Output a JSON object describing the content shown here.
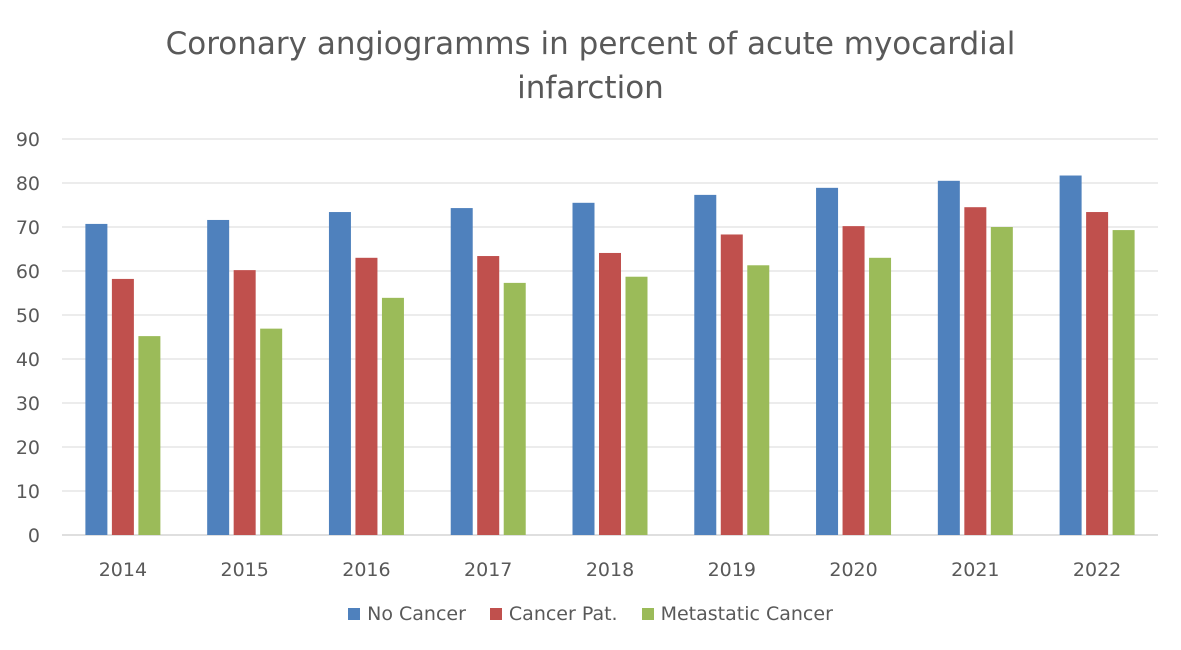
{
  "chart_data": {
    "type": "bar",
    "title_lines": [
      "Coronary angiogramms in percent of  acute myocardial",
      "infarction"
    ],
    "categories": [
      "2014",
      "2015",
      "2016",
      "2017",
      "2018",
      "2019",
      "2020",
      "2021",
      "2022"
    ],
    "ylim": [
      0,
      90
    ],
    "yticks": [
      "0",
      "10",
      "20",
      "30",
      "40",
      "50",
      "60",
      "70",
      "80",
      "90"
    ],
    "grid": true,
    "legend_position": "bottom",
    "series": [
      {
        "name": "No Cancer",
        "color": "#4f81bd",
        "values": [
          70.7,
          71.6,
          73.4,
          74.3,
          75.5,
          77.3,
          78.9,
          80.5,
          81.7
        ]
      },
      {
        "name": "Cancer Pat.",
        "color": "#c0504d",
        "values": [
          58.2,
          60.2,
          63.0,
          63.4,
          64.1,
          68.3,
          70.2,
          74.5,
          73.4
        ]
      },
      {
        "name": "Metastatic Cancer",
        "color": "#9bbb59",
        "values": [
          45.2,
          46.9,
          53.9,
          57.3,
          58.7,
          61.3,
          63.0,
          70.0,
          69.3
        ]
      }
    ]
  }
}
